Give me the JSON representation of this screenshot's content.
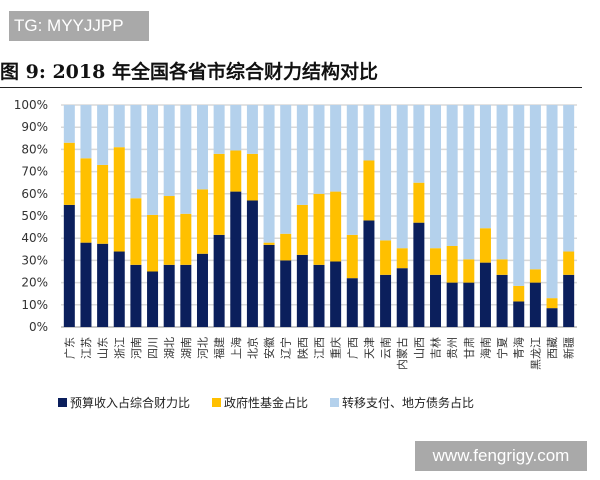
{
  "watermark_top": "TG: MYYJJPP",
  "watermark_bottom": "www.fengrigy.com",
  "chart_data": {
    "type": "bar",
    "stacked": true,
    "title": "图 9:  2018 年全国各省市综合财力结构对比",
    "xlabel": "",
    "ylabel": "",
    "ylim": [
      0,
      100
    ],
    "yticks": [
      "0%",
      "10%",
      "20%",
      "30%",
      "40%",
      "50%",
      "60%",
      "70%",
      "80%",
      "90%",
      "100%"
    ],
    "grid": true,
    "legend_position": "bottom",
    "categories": [
      "广东",
      "江苏",
      "山东",
      "浙江",
      "河南",
      "四川",
      "湖北",
      "湖南",
      "河北",
      "福建",
      "上海",
      "北京",
      "安徽",
      "辽宁",
      "陕西",
      "江西",
      "重庆",
      "广西",
      "天津",
      "云南",
      "内蒙古",
      "山西",
      "吉林",
      "贵州",
      "甘肃",
      "海南",
      "宁夏",
      "青海",
      "黑龙江",
      "西藏",
      "新疆"
    ],
    "series": [
      {
        "name": "预算收入占综合财力比",
        "color": "#0b1f5c",
        "values": [
          55,
          38,
          37.5,
          34,
          28,
          25,
          28,
          28,
          33,
          41.5,
          61,
          57,
          37,
          30,
          32.5,
          28,
          29.5,
          22,
          48,
          23.5,
          26.5,
          47,
          23.5,
          20,
          20,
          29,
          23.5,
          11.5,
          20,
          8.5,
          23.5
        ]
      },
      {
        "name": "政府性基金占比",
        "color": "#ffc000",
        "values": [
          28,
          38,
          35.5,
          47,
          30,
          25.5,
          31,
          23,
          29,
          36.5,
          18.5,
          21,
          1,
          12,
          22.5,
          32,
          31.5,
          19.5,
          27,
          15.5,
          9,
          18,
          12,
          16.5,
          10.5,
          15.5,
          7,
          7,
          6,
          4.5,
          10.5
        ]
      },
      {
        "name": "转移支付、地方债务占比",
        "color": "#b4d1ec",
        "values": [
          17,
          24,
          27,
          19,
          42,
          49.5,
          41,
          49,
          38,
          22,
          20.5,
          22,
          62,
          58,
          45,
          40,
          39,
          58.5,
          25,
          61,
          64.5,
          35,
          64.5,
          63.5,
          69.5,
          55.5,
          69.5,
          81.5,
          74,
          87,
          66
        ]
      }
    ]
  }
}
